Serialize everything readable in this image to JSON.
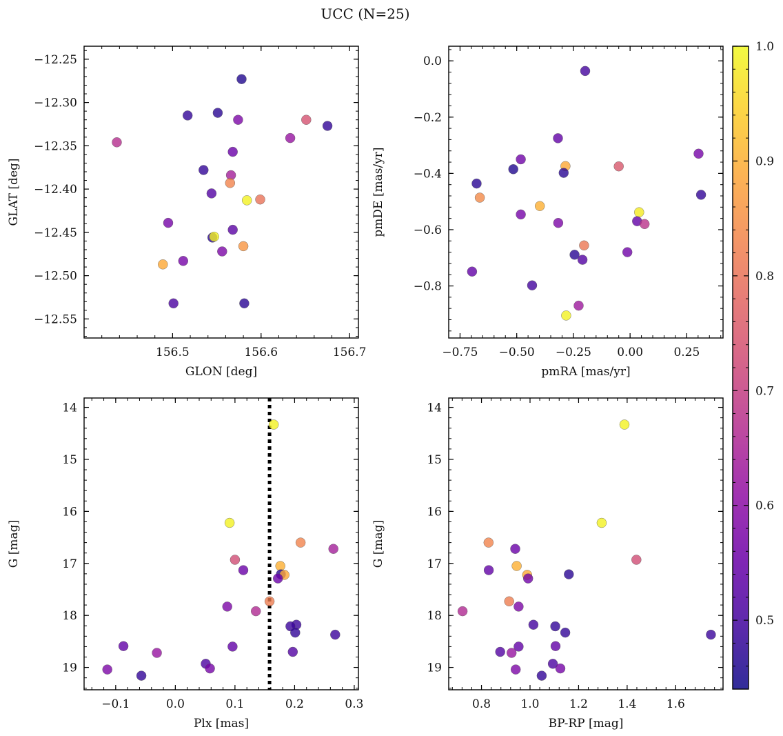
{
  "figure": {
    "title": "UCC (N=25)"
  },
  "colorbar": {
    "vmin": 0.44,
    "vmax": 1.0,
    "ticks": [
      0.5,
      0.6,
      0.7,
      0.8,
      0.9,
      1.0
    ],
    "tick_labels": [
      "0.5",
      "0.6",
      "0.7",
      "0.8",
      "0.9",
      "1.0"
    ],
    "colormap": "plasma"
  },
  "chart_data": [
    {
      "type": "scatter",
      "xlabel": "GLON [deg]",
      "ylabel": "GLAT [deg]",
      "xlim": [
        156.4,
        156.71
      ],
      "ylim": [
        -12.572,
        -12.235
      ],
      "y_inverted": false,
      "xticks": [
        156.5,
        156.6,
        156.7
      ],
      "xtick_labels": [
        "156.5",
        "156.6",
        "156.7"
      ],
      "yticks": [
        -12.25,
        -12.3,
        -12.35,
        -12.4,
        -12.45,
        -12.5,
        -12.55
      ],
      "ytick_labels": [
        "−12.25",
        "−12.30",
        "−12.35",
        "−12.40",
        "−12.45",
        "−12.50",
        "−12.55"
      ],
      "vline": null,
      "points": [
        {
          "x": 156.578,
          "y": -12.273,
          "c": 0.46
        },
        {
          "x": 156.551,
          "y": -12.312,
          "c": 0.47
        },
        {
          "x": 156.517,
          "y": -12.315,
          "c": 0.48
        },
        {
          "x": 156.574,
          "y": -12.32,
          "c": 0.58
        },
        {
          "x": 156.651,
          "y": -12.32,
          "c": 0.74
        },
        {
          "x": 156.675,
          "y": -12.327,
          "c": 0.48
        },
        {
          "x": 156.633,
          "y": -12.341,
          "c": 0.62
        },
        {
          "x": 156.437,
          "y": -12.346,
          "c": 0.67
        },
        {
          "x": 156.568,
          "y": -12.357,
          "c": 0.55
        },
        {
          "x": 156.535,
          "y": -12.378,
          "c": 0.48
        },
        {
          "x": 156.566,
          "y": -12.384,
          "c": 0.64
        },
        {
          "x": 156.565,
          "y": -12.393,
          "c": 0.83
        },
        {
          "x": 156.544,
          "y": -12.405,
          "c": 0.52
        },
        {
          "x": 156.584,
          "y": -12.413,
          "c": 0.99
        },
        {
          "x": 156.599,
          "y": -12.412,
          "c": 0.8
        },
        {
          "x": 156.495,
          "y": -12.439,
          "c": 0.57
        },
        {
          "x": 156.568,
          "y": -12.447,
          "c": 0.53
        },
        {
          "x": 156.545,
          "y": -12.456,
          "c": 0.47
        },
        {
          "x": 156.547,
          "y": -12.455,
          "c": 0.99
        },
        {
          "x": 156.58,
          "y": -12.466,
          "c": 0.86
        },
        {
          "x": 156.556,
          "y": -12.472,
          "c": 0.58
        },
        {
          "x": 156.512,
          "y": -12.483,
          "c": 0.57
        },
        {
          "x": 156.489,
          "y": -12.487,
          "c": 0.89
        },
        {
          "x": 156.501,
          "y": -12.532,
          "c": 0.51
        },
        {
          "x": 156.581,
          "y": -12.532,
          "c": 0.47
        }
      ]
    },
    {
      "type": "scatter",
      "xlabel": "pmRA [mas/yr]",
      "ylabel": "pmDE [mas/yr]",
      "xlim": [
        -0.8,
        0.41
      ],
      "ylim": [
        -0.985,
        0.052
      ],
      "y_inverted": false,
      "xticks": [
        -0.75,
        -0.5,
        -0.25,
        0.0,
        0.25
      ],
      "xtick_labels": [
        "−0.75",
        "−0.50",
        "−0.25",
        "0.00",
        "0.25"
      ],
      "yticks": [
        0.0,
        -0.2,
        -0.4,
        -0.6,
        -0.8
      ],
      "ytick_labels": [
        "0.0",
        "−0.2",
        "−0.4",
        "−0.6",
        "−0.8"
      ],
      "vline": null,
      "points": [
        {
          "x": -0.198,
          "y": -0.036,
          "c": 0.5
        },
        {
          "x": -0.318,
          "y": -0.275,
          "c": 0.54
        },
        {
          "x": 0.302,
          "y": -0.33,
          "c": 0.57
        },
        {
          "x": -0.482,
          "y": -0.35,
          "c": 0.56
        },
        {
          "x": -0.515,
          "y": -0.385,
          "c": 0.46
        },
        {
          "x": -0.285,
          "y": -0.374,
          "c": 0.89
        },
        {
          "x": -0.05,
          "y": -0.375,
          "c": 0.75
        },
        {
          "x": -0.293,
          "y": -0.398,
          "c": 0.47
        },
        {
          "x": -0.677,
          "y": -0.436,
          "c": 0.47
        },
        {
          "x": 0.313,
          "y": -0.476,
          "c": 0.48
        },
        {
          "x": -0.663,
          "y": -0.486,
          "c": 0.84
        },
        {
          "x": -0.398,
          "y": -0.516,
          "c": 0.9
        },
        {
          "x": 0.04,
          "y": -0.538,
          "c": 0.98
        },
        {
          "x": -0.482,
          "y": -0.546,
          "c": 0.57
        },
        {
          "x": 0.031,
          "y": -0.57,
          "c": 0.54
        },
        {
          "x": 0.064,
          "y": -0.58,
          "c": 0.68
        },
        {
          "x": -0.317,
          "y": -0.576,
          "c": 0.58
        },
        {
          "x": -0.203,
          "y": -0.656,
          "c": 0.81
        },
        {
          "x": -0.012,
          "y": -0.68,
          "c": 0.56
        },
        {
          "x": -0.245,
          "y": -0.689,
          "c": 0.47
        },
        {
          "x": -0.21,
          "y": -0.707,
          "c": 0.52
        },
        {
          "x": -0.697,
          "y": -0.749,
          "c": 0.54
        },
        {
          "x": -0.432,
          "y": -0.798,
          "c": 0.5
        },
        {
          "x": -0.227,
          "y": -0.87,
          "c": 0.63
        },
        {
          "x": -0.282,
          "y": -0.905,
          "c": 0.99
        }
      ]
    },
    {
      "type": "scatter",
      "xlabel": "Plx [mas]",
      "ylabel": "G [mag]",
      "xlim": [
        -0.153,
        0.307
      ],
      "ylim": [
        13.82,
        19.43
      ],
      "y_inverted": true,
      "xticks": [
        -0.1,
        0.0,
        0.1,
        0.2,
        0.3
      ],
      "xtick_labels": [
        "−0.1",
        "0.0",
        "0.1",
        "0.2",
        "0.3"
      ],
      "yticks": [
        14,
        15,
        16,
        17,
        18,
        19
      ],
      "ytick_labels": [
        "14",
        "15",
        "16",
        "17",
        "18",
        "19"
      ],
      "vline": 0.158,
      "points": [
        {
          "x": 0.165,
          "y": 14.33,
          "c": 0.99
        },
        {
          "x": 0.091,
          "y": 16.22,
          "c": 0.99
        },
        {
          "x": 0.21,
          "y": 16.6,
          "c": 0.83
        },
        {
          "x": 0.265,
          "y": 16.72,
          "c": 0.64
        },
        {
          "x": 0.1,
          "y": 16.93,
          "c": 0.73
        },
        {
          "x": 0.176,
          "y": 17.05,
          "c": 0.9
        },
        {
          "x": 0.114,
          "y": 17.13,
          "c": 0.55
        },
        {
          "x": 0.177,
          "y": 17.21,
          "c": 0.47
        },
        {
          "x": 0.183,
          "y": 17.22,
          "c": 0.89
        },
        {
          "x": 0.172,
          "y": 17.29,
          "c": 0.55
        },
        {
          "x": 0.158,
          "y": 17.73,
          "c": 0.82
        },
        {
          "x": 0.087,
          "y": 17.83,
          "c": 0.58
        },
        {
          "x": 0.135,
          "y": 17.92,
          "c": 0.66
        },
        {
          "x": 0.203,
          "y": 18.18,
          "c": 0.49
        },
        {
          "x": 0.193,
          "y": 18.21,
          "c": 0.49
        },
        {
          "x": 0.201,
          "y": 18.33,
          "c": 0.48
        },
        {
          "x": 0.268,
          "y": 18.37,
          "c": 0.49
        },
        {
          "x": -0.087,
          "y": 18.59,
          "c": 0.54
        },
        {
          "x": 0.096,
          "y": 18.6,
          "c": 0.54
        },
        {
          "x": 0.197,
          "y": 18.7,
          "c": 0.52
        },
        {
          "x": -0.031,
          "y": 18.72,
          "c": 0.62
        },
        {
          "x": 0.051,
          "y": 18.93,
          "c": 0.51
        },
        {
          "x": 0.058,
          "y": 19.02,
          "c": 0.57
        },
        {
          "x": -0.114,
          "y": 19.04,
          "c": 0.58
        },
        {
          "x": -0.057,
          "y": 19.16,
          "c": 0.48
        }
      ]
    },
    {
      "type": "scatter",
      "xlabel": "BP-RP [mag]",
      "ylabel": "G [mag]",
      "xlim": [
        0.665,
        1.795
      ],
      "ylim": [
        13.82,
        19.43
      ],
      "y_inverted": true,
      "xticks": [
        0.8,
        1.0,
        1.2,
        1.4,
        1.6
      ],
      "xtick_labels": [
        "0.8",
        "1.0",
        "1.2",
        "1.4",
        "1.6"
      ],
      "yticks": [
        14,
        15,
        16,
        17,
        18,
        19
      ],
      "ytick_labels": [
        "14",
        "15",
        "16",
        "17",
        "18",
        "19"
      ],
      "vline": null,
      "points": [
        {
          "x": 1.389,
          "y": 14.33,
          "c": 0.99
        },
        {
          "x": 1.295,
          "y": 16.22,
          "c": 0.99
        },
        {
          "x": 0.829,
          "y": 16.6,
          "c": 0.83
        },
        {
          "x": 0.939,
          "y": 16.72,
          "c": 0.55
        },
        {
          "x": 1.438,
          "y": 16.93,
          "c": 0.73
        },
        {
          "x": 0.945,
          "y": 17.05,
          "c": 0.9
        },
        {
          "x": 0.83,
          "y": 17.13,
          "c": 0.54
        },
        {
          "x": 1.16,
          "y": 17.21,
          "c": 0.47
        },
        {
          "x": 0.988,
          "y": 17.22,
          "c": 0.89
        },
        {
          "x": 0.992,
          "y": 17.29,
          "c": 0.56
        },
        {
          "x": 0.914,
          "y": 17.73,
          "c": 0.82
        },
        {
          "x": 0.953,
          "y": 17.83,
          "c": 0.58
        },
        {
          "x": 0.722,
          "y": 17.92,
          "c": 0.66
        },
        {
          "x": 1.014,
          "y": 18.18,
          "c": 0.5
        },
        {
          "x": 1.104,
          "y": 18.21,
          "c": 0.48
        },
        {
          "x": 1.145,
          "y": 18.33,
          "c": 0.48
        },
        {
          "x": 1.745,
          "y": 18.37,
          "c": 0.49
        },
        {
          "x": 0.953,
          "y": 18.6,
          "c": 0.54
        },
        {
          "x": 1.105,
          "y": 18.59,
          "c": 0.54
        },
        {
          "x": 0.877,
          "y": 18.7,
          "c": 0.52
        },
        {
          "x": 0.924,
          "y": 18.72,
          "c": 0.62
        },
        {
          "x": 1.094,
          "y": 18.93,
          "c": 0.51
        },
        {
          "x": 1.125,
          "y": 19.02,
          "c": 0.57
        },
        {
          "x": 0.941,
          "y": 19.04,
          "c": 0.58
        },
        {
          "x": 1.048,
          "y": 19.16,
          "c": 0.48
        }
      ]
    }
  ]
}
